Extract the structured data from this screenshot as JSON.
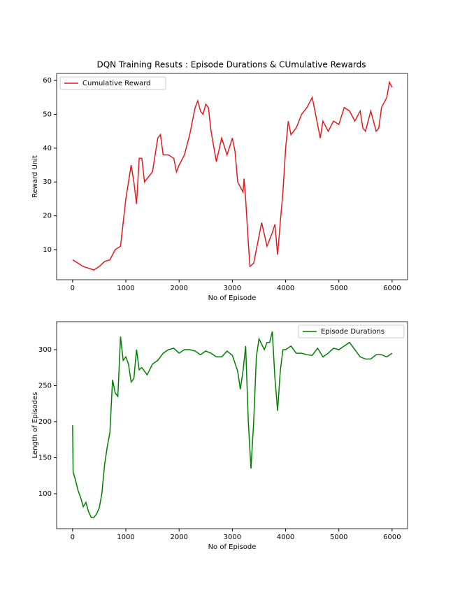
{
  "chart_data": [
    {
      "type": "line",
      "title": "DQN Training Resuts : Episode Durations & CUmulative Rewards",
      "xlabel": "No of Episode",
      "ylabel": "Reward Unit",
      "legend": "upper-left",
      "xlim": [
        -300,
        6290
      ],
      "ylim": [
        1.1,
        62.1
      ],
      "xticks": [
        0,
        1000,
        2000,
        3000,
        4000,
        5000,
        6000
      ],
      "yticks": [
        10,
        20,
        30,
        40,
        50,
        60
      ],
      "x": [
        0,
        100,
        200,
        300,
        400,
        500,
        600,
        700,
        800,
        900,
        1000,
        1050,
        1100,
        1150,
        1200,
        1250,
        1300,
        1350,
        1400,
        1500,
        1550,
        1600,
        1650,
        1700,
        1800,
        1900,
        1950,
        2000,
        2100,
        2200,
        2300,
        2350,
        2400,
        2450,
        2500,
        2550,
        2600,
        2700,
        2800,
        2900,
        3000,
        3050,
        3100,
        3200,
        3220,
        3250,
        3300,
        3330,
        3400,
        3500,
        3550,
        3650,
        3750,
        3800,
        3850,
        3900,
        3950,
        4000,
        4050,
        4100,
        4200,
        4300,
        4400,
        4500,
        4550,
        4600,
        4650,
        4700,
        4800,
        4900,
        5000,
        5100,
        5200,
        5300,
        5400,
        5450,
        5500,
        5600,
        5700,
        5750,
        5800,
        5900,
        5950,
        6000
      ],
      "series": [
        {
          "name": "Cumulative Reward",
          "color": "#e31a1c",
          "values": [
            7,
            6,
            5,
            4.5,
            4,
            5,
            6.5,
            7,
            10,
            11,
            25,
            30,
            35,
            30,
            23.5,
            37,
            37,
            30,
            31,
            33,
            38,
            43,
            44,
            38,
            38,
            37,
            33,
            35,
            38,
            44,
            52,
            54,
            51,
            50,
            53,
            52,
            45,
            36,
            43,
            38,
            43,
            39,
            30,
            27,
            31,
            25,
            12,
            5,
            6,
            14,
            18,
            11,
            15,
            17.5,
            8.5,
            18,
            27,
            40,
            48,
            44,
            46,
            50,
            52,
            55,
            51,
            47,
            43,
            48,
            45,
            48,
            47,
            52,
            51,
            48,
            51,
            46,
            45,
            51,
            45,
            46,
            52,
            55,
            59.5,
            58
          ]
        }
      ]
    },
    {
      "type": "line",
      "xlabel": "No of Episode",
      "ylabel": "Length of Episodes",
      "legend": "upper-right",
      "xlim": [
        -300,
        6290
      ],
      "ylim": [
        51.5,
        338.8
      ],
      "xticks": [
        0,
        1000,
        2000,
        3000,
        4000,
        5000,
        6000
      ],
      "yticks": [
        100,
        150,
        200,
        250,
        300
      ],
      "x": [
        0,
        10,
        50,
        100,
        150,
        200,
        250,
        300,
        350,
        400,
        450,
        500,
        550,
        600,
        650,
        700,
        750,
        800,
        850,
        900,
        950,
        1000,
        1050,
        1100,
        1150,
        1200,
        1250,
        1300,
        1400,
        1500,
        1600,
        1700,
        1800,
        1900,
        2000,
        2100,
        2200,
        2300,
        2400,
        2500,
        2600,
        2700,
        2800,
        2900,
        3000,
        3100,
        3150,
        3200,
        3250,
        3300,
        3350,
        3400,
        3450,
        3500,
        3600,
        3650,
        3700,
        3750,
        3800,
        3850,
        3900,
        3950,
        4000,
        4100,
        4200,
        4300,
        4400,
        4500,
        4600,
        4700,
        4800,
        4900,
        5000,
        5100,
        5200,
        5300,
        5400,
        5500,
        5600,
        5700,
        5800,
        5900,
        6000
      ],
      "series": [
        {
          "name": "Episode Durations",
          "color": "#008000",
          "values": [
            195,
            130,
            120,
            105,
            95,
            82,
            88,
            75,
            67,
            67,
            72,
            80,
            100,
            140,
            165,
            185,
            258,
            240,
            235,
            318,
            285,
            290,
            280,
            255,
            260,
            300,
            272,
            275,
            265,
            280,
            285,
            295,
            300,
            302,
            295,
            300,
            300,
            298,
            293,
            298,
            295,
            290,
            290,
            298,
            292,
            270,
            245,
            270,
            305,
            200,
            135,
            200,
            290,
            315,
            300,
            310,
            310,
            325,
            260,
            215,
            270,
            300,
            300,
            305,
            295,
            295,
            293,
            292,
            302,
            290,
            295,
            302,
            300,
            305,
            310,
            300,
            290,
            287,
            287,
            293,
            293,
            290,
            295
          ]
        }
      ]
    }
  ]
}
